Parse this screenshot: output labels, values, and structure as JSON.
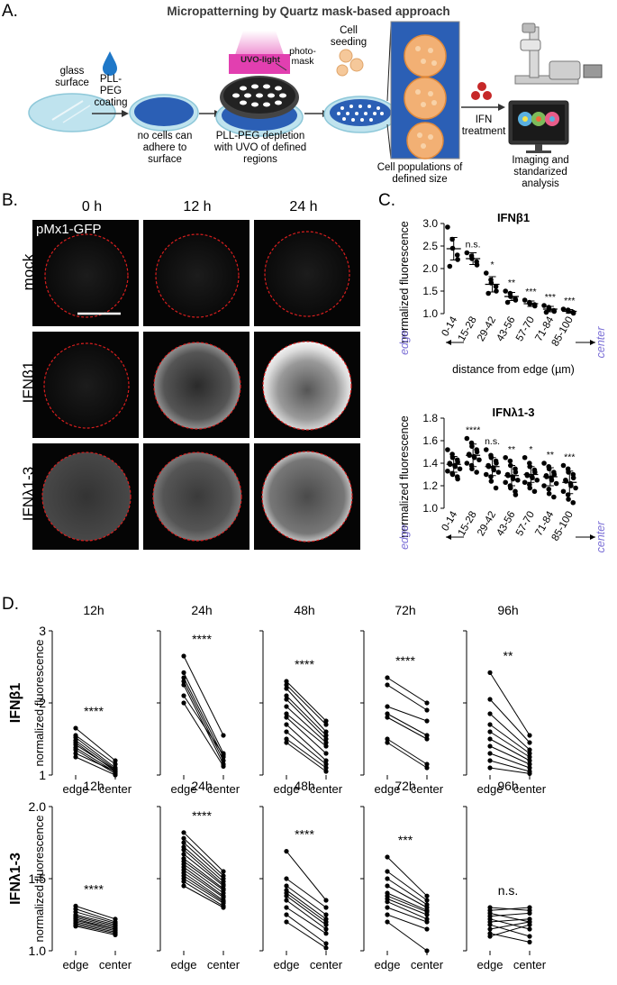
{
  "panelA": {
    "label": "A.",
    "title": "Micropatterning by Quartz mask-based approach",
    "glass_surface": "glass surface",
    "pll_peg_coating": "PLL-PEG coating",
    "no_cells": "no cells can adhere to surface",
    "uvo_light": "UVO-light",
    "photomask": "photo-mask",
    "depletion": "PLL-PEG depletion with UVO of defined regions",
    "cell_seeding": "Cell seeding",
    "cell_populations": "Cell populations of defined size",
    "ifn_treatment": "IFN treatment",
    "imaging": "Imaging and standarized analysis"
  },
  "panelB": {
    "label": "B.",
    "columns": [
      "0 h",
      "12 h",
      "24 h"
    ],
    "rows": [
      "mock",
      "IFNβ1",
      "IFNλ1-3"
    ],
    "reporter": "pMx1-GFP",
    "boundary_color": "#d81e1e"
  },
  "panelC": {
    "label": "C.",
    "ylabel": "normalized fluorescence",
    "xlabel": "distance from edge (µm)",
    "edge_word": "edge",
    "center_word": "center",
    "word_color": "#7b6fd6",
    "charts": [
      {
        "key": "ifnb1",
        "title": "IFNβ1"
      },
      {
        "key": "ifnl",
        "title": "IFNλ1-3"
      }
    ]
  },
  "panelD": {
    "label": "D.",
    "ylabel": "normalized fluorescence",
    "rows": [
      {
        "key": "ifnb1",
        "rowlabel": "IFNβ1"
      },
      {
        "key": "ifnl",
        "rowlabel": "IFNλ1-3"
      }
    ]
  },
  "chart_data": [
    {
      "type": "scatter",
      "id": "C-IFNb1",
      "title": "IFNβ1",
      "ylabel": "normalized fluorescence",
      "xlabel": "distance from edge (µm)",
      "categories": [
        "0-14",
        "15-28",
        "29-42",
        "43-56",
        "57-70",
        "71-84",
        "85-100"
      ],
      "ylim": [
        1.0,
        3.0
      ],
      "yticks": [
        "1.0",
        "1.5",
        "2.0",
        "2.5",
        "3.0"
      ],
      "means": [
        2.44,
        2.22,
        1.65,
        1.38,
        1.22,
        1.1,
        1.05
      ],
      "sd": [
        0.25,
        0.13,
        0.17,
        0.09,
        0.06,
        0.06,
        0.04
      ],
      "points": [
        [
          2.92,
          2.65,
          2.45,
          2.3,
          2.2,
          2.05
        ],
        [
          2.35,
          2.28,
          2.22,
          2.15,
          2.08
        ],
        [
          1.9,
          1.75,
          1.68,
          1.6,
          1.5,
          1.45
        ],
        [
          1.5,
          1.45,
          1.38,
          1.33,
          1.3,
          1.25
        ],
        [
          1.3,
          1.25,
          1.22,
          1.2,
          1.17
        ],
        [
          1.18,
          1.14,
          1.1,
          1.07,
          1.05,
          1.03
        ],
        [
          1.1,
          1.08,
          1.05,
          1.03,
          1.01
        ]
      ],
      "significance": [
        "",
        "n.s.",
        "*",
        "**",
        "***",
        "***",
        "***"
      ]
    },
    {
      "type": "scatter",
      "id": "C-IFNl",
      "title": "IFNλ1-3",
      "ylabel": "normalized fluorescence",
      "xlabel": "distance from edge (µm)",
      "categories": [
        "0-14",
        "15-28",
        "29-42",
        "43-56",
        "57-70",
        "71-84",
        "85-100"
      ],
      "ylim": [
        1.0,
        1.8
      ],
      "yticks": [
        "1.0",
        "1.2",
        "1.4",
        "1.6",
        "1.8"
      ],
      "means": [
        1.39,
        1.47,
        1.37,
        1.29,
        1.3,
        1.28,
        1.23
      ],
      "sd": [
        0.07,
        0.1,
        0.08,
        0.09,
        0.07,
        0.08,
        0.1
      ],
      "points": [
        [
          1.52,
          1.48,
          1.45,
          1.43,
          1.41,
          1.4,
          1.39,
          1.38,
          1.37,
          1.35,
          1.33,
          1.31,
          1.3,
          1.28,
          1.26
        ],
        [
          1.62,
          1.58,
          1.55,
          1.52,
          1.5,
          1.48,
          1.47,
          1.46,
          1.45,
          1.43,
          1.4,
          1.38,
          1.35,
          1.32
        ],
        [
          1.52,
          1.47,
          1.45,
          1.42,
          1.4,
          1.38,
          1.37,
          1.36,
          1.34,
          1.32,
          1.3,
          1.28,
          1.24,
          1.18
        ],
        [
          1.45,
          1.42,
          1.38,
          1.35,
          1.32,
          1.3,
          1.29,
          1.28,
          1.26,
          1.25,
          1.23,
          1.2,
          1.18,
          1.15,
          1.12
        ],
        [
          1.45,
          1.4,
          1.37,
          1.34,
          1.32,
          1.3,
          1.29,
          1.28,
          1.27,
          1.25,
          1.23,
          1.21,
          1.18,
          1.15
        ],
        [
          1.4,
          1.37,
          1.35,
          1.32,
          1.3,
          1.29,
          1.28,
          1.27,
          1.25,
          1.22,
          1.2,
          1.17,
          1.13,
          1.1
        ],
        [
          1.38,
          1.35,
          1.32,
          1.3,
          1.27,
          1.25,
          1.24,
          1.22,
          1.2,
          1.18,
          1.15,
          1.12,
          1.08,
          1.05
        ]
      ],
      "significance": [
        "",
        "****",
        "n.s.",
        "**",
        "*",
        "**",
        "***"
      ]
    },
    {
      "type": "line",
      "id": "D-IFNb1",
      "rowlabel": "IFNβ1",
      "ylabel": "normalized fluorescence",
      "ylim": [
        1,
        3
      ],
      "yticks": [
        "1",
        "2",
        "3"
      ],
      "xcategories": [
        "edge",
        "center"
      ],
      "panels": [
        {
          "title": "12h",
          "sig": "****",
          "pairs": [
            [
              1.65,
              1.2
            ],
            [
              1.55,
              1.15
            ],
            [
              1.52,
              1.1
            ],
            [
              1.48,
              1.08
            ],
            [
              1.45,
              1.05
            ],
            [
              1.42,
              1.07
            ],
            [
              1.38,
              1.04
            ],
            [
              1.35,
              1.02
            ],
            [
              1.3,
              1.05
            ],
            [
              1.25,
              1.0
            ]
          ]
        },
        {
          "title": "24h",
          "sig": "****",
          "pairs": [
            [
              2.65,
              1.55
            ],
            [
              2.42,
              1.3
            ],
            [
              2.35,
              1.25
            ],
            [
              2.3,
              1.2
            ],
            [
              2.25,
              1.15
            ],
            [
              2.1,
              1.28
            ],
            [
              2.0,
              1.12
            ]
          ]
        },
        {
          "title": "48h",
          "sig": "****",
          "pairs": [
            [
              2.3,
              1.75
            ],
            [
              2.25,
              1.7
            ],
            [
              2.2,
              1.6
            ],
            [
              2.1,
              1.55
            ],
            [
              2.05,
              1.5
            ],
            [
              1.95,
              1.45
            ],
            [
              1.85,
              1.4
            ],
            [
              1.8,
              1.3
            ],
            [
              1.7,
              1.2
            ],
            [
              1.6,
              1.15
            ],
            [
              1.5,
              1.1
            ],
            [
              1.45,
              1.05
            ]
          ]
        },
        {
          "title": "72h",
          "sig": "****",
          "pairs": [
            [
              2.35,
              2.0
            ],
            [
              2.25,
              1.9
            ],
            [
              1.95,
              1.75
            ],
            [
              1.85,
              1.55
            ],
            [
              1.8,
              1.5
            ],
            [
              1.5,
              1.15
            ],
            [
              1.45,
              1.1
            ]
          ]
        },
        {
          "title": "96h",
          "sig": "**",
          "pairs": [
            [
              2.42,
              1.55
            ],
            [
              2.05,
              1.45
            ],
            [
              1.85,
              1.35
            ],
            [
              1.7,
              1.3
            ],
            [
              1.6,
              1.25
            ],
            [
              1.5,
              1.2
            ],
            [
              1.4,
              1.15
            ],
            [
              1.3,
              1.1
            ],
            [
              1.2,
              1.05
            ],
            [
              1.1,
              1.02
            ]
          ]
        }
      ]
    },
    {
      "type": "line",
      "id": "D-IFNl",
      "rowlabel": "IFNλ1-3",
      "ylabel": "normalized fluorescence",
      "ylim": [
        1.0,
        2.0
      ],
      "yticks": [
        "1.0",
        "1.5",
        "2.0"
      ],
      "xcategories": [
        "edge",
        "center"
      ],
      "panels": [
        {
          "title": "12h",
          "sig": "****",
          "pairs": [
            [
              1.31,
              1.22
            ],
            [
              1.29,
              1.2
            ],
            [
              1.27,
              1.19
            ],
            [
              1.25,
              1.18
            ],
            [
              1.24,
              1.17
            ],
            [
              1.23,
              1.16
            ],
            [
              1.22,
              1.15
            ],
            [
              1.21,
              1.15
            ],
            [
              1.2,
              1.14
            ],
            [
              1.19,
              1.13
            ],
            [
              1.18,
              1.12
            ],
            [
              1.17,
              1.11
            ]
          ]
        },
        {
          "title": "24h",
          "sig": "****",
          "pairs": [
            [
              1.82,
              1.55
            ],
            [
              1.78,
              1.52
            ],
            [
              1.75,
              1.5
            ],
            [
              1.72,
              1.48
            ],
            [
              1.7,
              1.46
            ],
            [
              1.67,
              1.45
            ],
            [
              1.64,
              1.43
            ],
            [
              1.62,
              1.42
            ],
            [
              1.6,
              1.4
            ],
            [
              1.58,
              1.38
            ],
            [
              1.56,
              1.37
            ],
            [
              1.54,
              1.35
            ],
            [
              1.52,
              1.34
            ],
            [
              1.5,
              1.33
            ],
            [
              1.48,
              1.31
            ],
            [
              1.45,
              1.3
            ]
          ]
        },
        {
          "title": "48h",
          "sig": "****",
          "pairs": [
            [
              1.69,
              1.35
            ],
            [
              1.5,
              1.3
            ],
            [
              1.45,
              1.25
            ],
            [
              1.42,
              1.22
            ],
            [
              1.4,
              1.2
            ],
            [
              1.38,
              1.18
            ],
            [
              1.35,
              1.15
            ],
            [
              1.3,
              1.12
            ],
            [
              1.25,
              1.05
            ],
            [
              1.2,
              1.02
            ]
          ]
        },
        {
          "title": "72h",
          "sig": "***",
          "pairs": [
            [
              1.65,
              1.38
            ],
            [
              1.55,
              1.35
            ],
            [
              1.5,
              1.32
            ],
            [
              1.45,
              1.3
            ],
            [
              1.4,
              1.28
            ],
            [
              1.38,
              1.27
            ],
            [
              1.36,
              1.25
            ],
            [
              1.34,
              1.22
            ],
            [
              1.3,
              1.2
            ],
            [
              1.25,
              1.15
            ],
            [
              1.2,
              1.0
            ]
          ]
        },
        {
          "title": "96h",
          "sig": "n.s.",
          "pairs": [
            [
              1.3,
              1.28
            ],
            [
              1.28,
              1.3
            ],
            [
              1.26,
              1.2
            ],
            [
              1.24,
              1.26
            ],
            [
              1.22,
              1.15
            ],
            [
              1.2,
              1.22
            ],
            [
              1.18,
              1.1
            ],
            [
              1.15,
              1.2
            ],
            [
              1.12,
              1.06
            ],
            [
              1.1,
              1.18
            ]
          ]
        }
      ]
    }
  ]
}
